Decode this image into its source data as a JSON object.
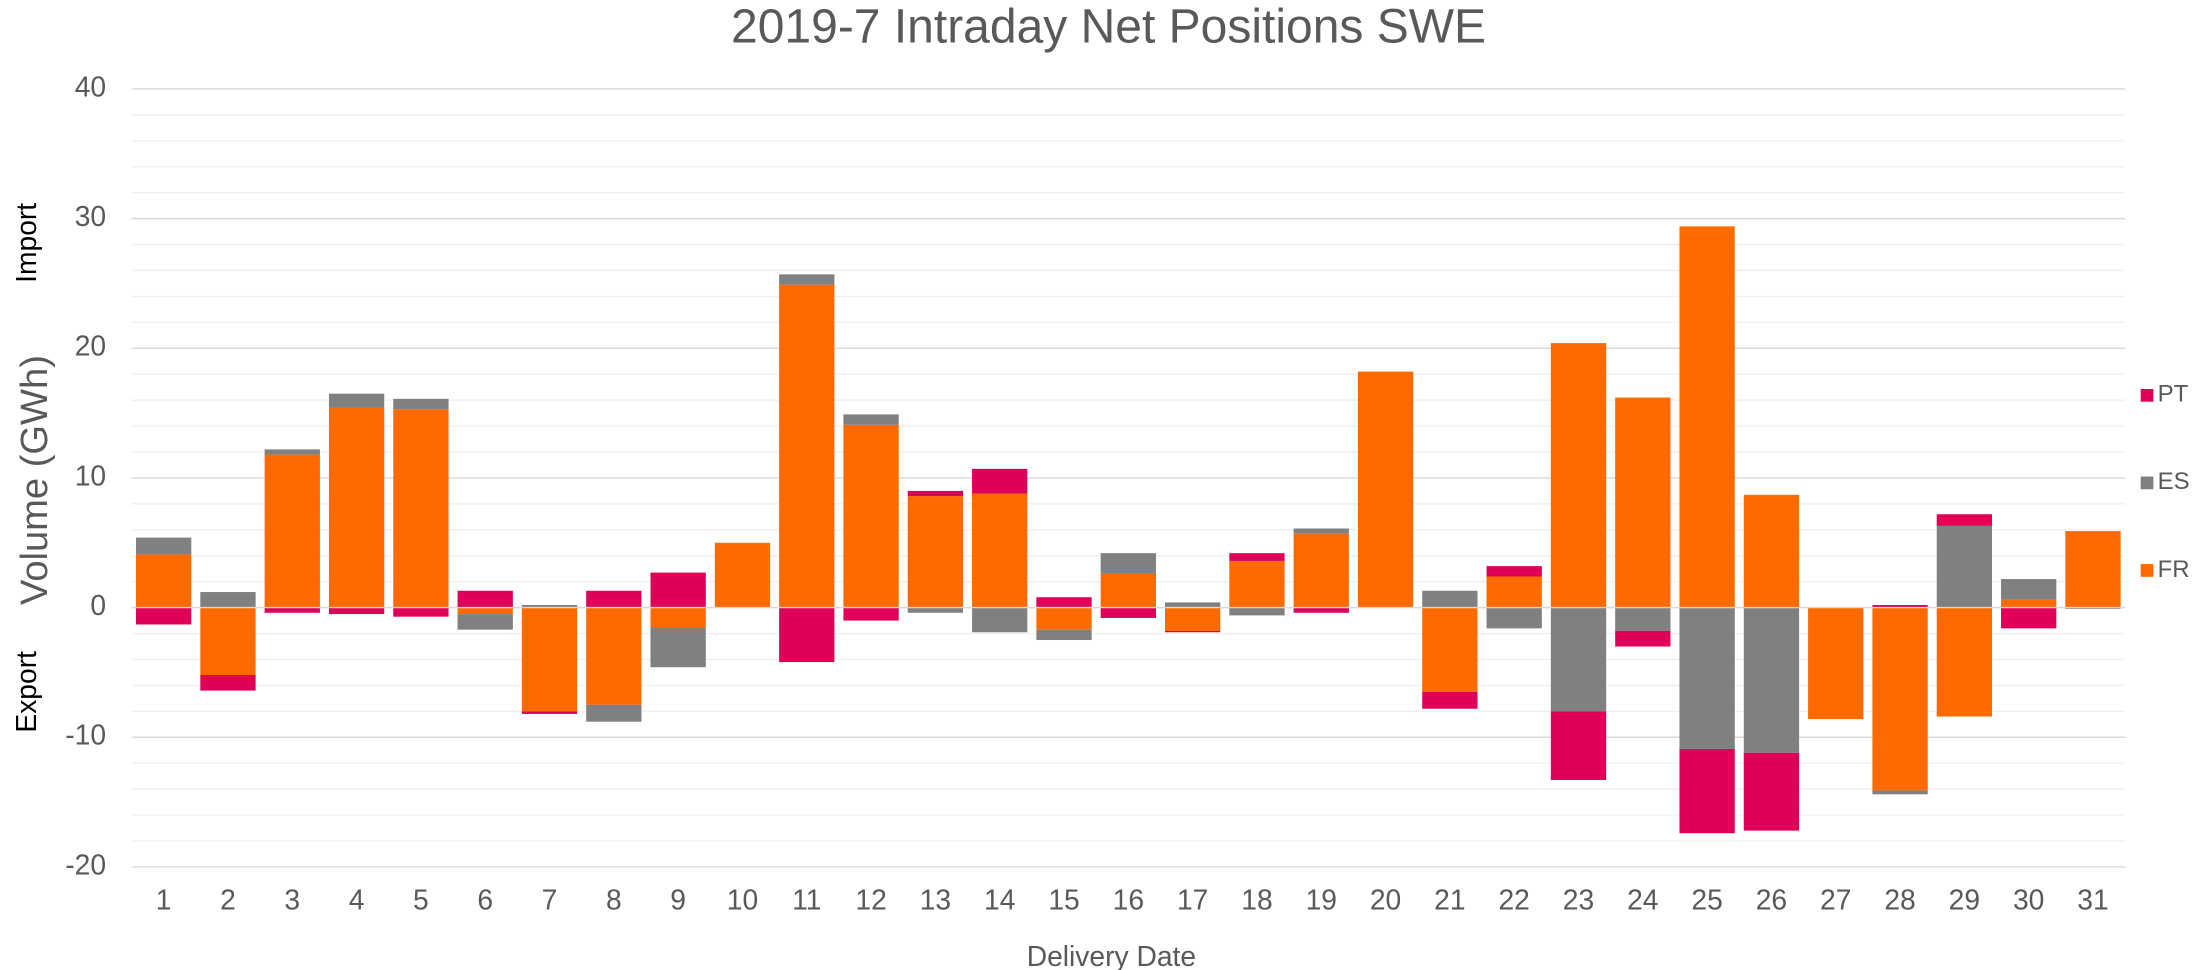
{
  "chart_data": {
    "type": "stacked_bar",
    "title": "2019-7 Intraday Net Positions SWE",
    "x_label": "Delivery Date",
    "y_label": "Volume (GWh)",
    "annotations": [
      "Import",
      "Export"
    ],
    "categories": [
      "1",
      "2",
      "3",
      "4",
      "5",
      "6",
      "7",
      "8",
      "9",
      "10",
      "11",
      "12",
      "13",
      "14",
      "15",
      "16",
      "17",
      "18",
      "19",
      "20",
      "21",
      "22",
      "23",
      "24",
      "25",
      "26",
      "27",
      "28",
      "29",
      "30",
      "31"
    ],
    "series": [
      {
        "name": "FR",
        "color": "#ff6a00",
        "values": [
          4.1,
          -5.2,
          11.8,
          15.4,
          15.3,
          -0.5,
          -8.0,
          -7.5,
          -1.5,
          5.0,
          24.9,
          14.1,
          8.6,
          8.8,
          -1.7,
          2.6,
          -1.8,
          3.6,
          5.7,
          18.2,
          -6.5,
          2.4,
          20.4,
          16.2,
          29.4,
          8.7,
          -8.6,
          -14.1,
          -8.4,
          0.6,
          5.9
        ]
      },
      {
        "name": "ES",
        "color": "#808080",
        "values": [
          1.3,
          1.2,
          0.4,
          1.1,
          0.8,
          -1.2,
          0.2,
          -1.3,
          -3.1,
          0,
          0.8,
          0.8,
          -0.4,
          -1.9,
          -0.8,
          1.6,
          0.4,
          -0.6,
          0.4,
          0,
          1.3,
          -1.6,
          -8.0,
          -1.8,
          -10.9,
          -11.2,
          0,
          -0.3,
          6.3,
          1.6,
          -0.1
        ]
      },
      {
        "name": "PT",
        "color": "#e0005a",
        "values": [
          -1.3,
          -1.2,
          -0.4,
          -0.5,
          -0.7,
          1.3,
          -0.2,
          1.3,
          2.7,
          0,
          -4.2,
          -1.0,
          0.4,
          1.9,
          0.8,
          -0.8,
          -0.1,
          0.6,
          -0.4,
          0,
          -1.3,
          0.8,
          -5.3,
          -1.2,
          -6.5,
          -6.0,
          0,
          0.2,
          0.9,
          -1.6,
          0
        ]
      }
    ],
    "ylim": [
      -20,
      40
    ],
    "yticks": [
      -20,
      -10,
      0,
      10,
      20,
      30,
      40
    ],
    "minor_yticks": [
      -18,
      -16,
      -14,
      -12,
      -8,
      -6,
      -4,
      -2,
      2,
      4,
      6,
      8,
      12,
      14,
      16,
      18,
      22,
      24,
      26,
      28,
      32,
      34,
      36,
      38
    ],
    "grid": true,
    "legend": "right"
  }
}
